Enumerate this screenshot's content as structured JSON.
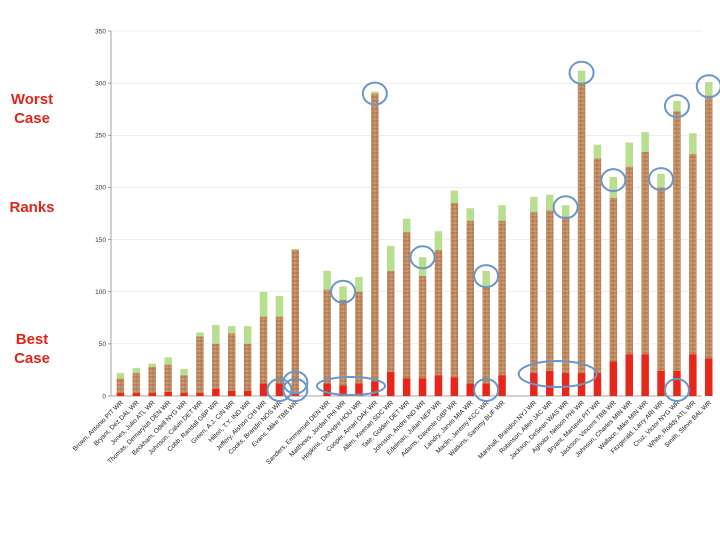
{
  "side_labels": {
    "worst": "Worst\nCase",
    "ranks": "Ranks",
    "best": "Best\nCase"
  },
  "colors": {
    "best": "#e8271a",
    "middle": "#c28a60",
    "top": "#b7df8e",
    "axis": "#888888",
    "grid": "#dddddd",
    "circle": "#6a96c8"
  },
  "chart_data": {
    "type": "bar",
    "stacked": true,
    "ylim": [
      0,
      350
    ],
    "yticks": [
      0,
      50,
      100,
      150,
      200,
      250,
      300,
      350
    ],
    "grid": false,
    "legend": "none",
    "title": "",
    "xlabel": "",
    "ylabel": "",
    "categories": [
      "Brown, Antonio PIT WR",
      "Bryant, Dez DAL WR",
      "Jones, Julio ATL WR",
      "Thomas, Demaryius DEN WR",
      "Beckham, Odell NYG WR",
      "Johnson, Calvin DET WR",
      "Cobb, Randall GBP WR",
      "Green, A.J. CIN WR",
      "Hilton, T.Y. IND WR",
      "Jeffery, Alshon CHI WR",
      "Cooks, Brandin NOS WR",
      "Evans, Mike TBB WR",
      "",
      "Sanders, Emmanuel DEN WR",
      "Matthews, Jordan PHI WR",
      "Hopkins, DeAndre HOU WR",
      "Cooper, Amari OAK WR",
      "Allen, Keenan SDC WR",
      "Tate, Golden DET WR",
      "Johnson, Andre IND WR",
      "Edelman, Julian NEP WR",
      "Adams, Davante GBP WR",
      "Landry, Jarvis MIA WR",
      "Maclin, Jeremy KCC WR",
      "Watkins, Sammy BUF WR",
      "",
      "Marshall, Brandon NYJ WR",
      "Robinson, Allen JAC WR",
      "Jackson, DeSean WAS WR",
      "Agholor, Nelson PHI WR",
      "Bryant, Martavis PIT WR",
      "Jackson, Vincent TBB WR",
      "Johnson, Charles MIN WR",
      "Wallace, Mike MIN WR",
      "Fitzgerald, Larry ARI WR",
      "Cruz, Victor NYG WR",
      "White, Roddy ATL WR",
      "Smith, Steve BAL WR"
    ],
    "best": [
      3,
      3,
      3,
      4,
      3,
      3,
      7,
      5,
      5,
      12,
      12,
      3,
      null,
      12,
      10,
      12,
      14,
      23,
      17,
      17,
      20,
      18,
      12,
      12,
      20,
      null,
      22,
      24,
      22,
      22,
      22,
      33,
      40,
      40,
      24,
      24,
      40,
      36
    ],
    "middle": [
      17,
      22,
      28,
      30,
      20,
      57,
      50,
      60,
      50,
      76,
      76,
      140,
      null,
      102,
      92,
      100,
      290,
      120,
      157,
      115,
      140,
      185,
      168,
      105,
      168,
      null,
      176,
      178,
      172,
      300,
      228,
      190,
      220,
      234,
      200,
      273,
      232,
      288
    ],
    "worst": [
      22,
      27,
      31,
      37,
      26,
      61,
      68,
      67,
      67,
      100,
      96,
      141,
      null,
      120,
      105,
      114,
      292,
      144,
      170,
      133,
      158,
      197,
      180,
      120,
      183,
      null,
      191,
      193,
      183,
      312,
      241,
      210,
      243,
      253,
      213,
      283,
      252,
      301
    ]
  }
}
